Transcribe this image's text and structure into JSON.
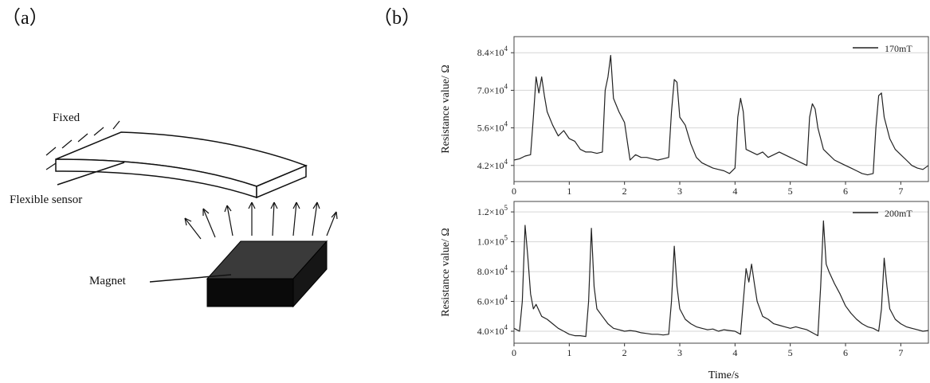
{
  "panel_a": {
    "label": "（a）",
    "fixed_label": "Fixed",
    "sensor_label": "Flexible sensor",
    "magnet_label": "Magnet"
  },
  "panel_b": {
    "label": "（b）",
    "shared_xlabel": "Time/s"
  },
  "chart_data": [
    {
      "type": "line",
      "legend": "170mT",
      "legend_position": "top-right",
      "ylabel": "Resistance value/ Ω",
      "xlim": [
        0,
        7.5
      ],
      "ylim": [
        36000,
        90000
      ],
      "x_ticks": [
        0,
        1,
        2,
        3,
        4,
        5,
        6,
        7
      ],
      "y_ticks": [
        {
          "value": 42000,
          "mantissa": "4.2×10",
          "exp": "4"
        },
        {
          "value": 56000,
          "mantissa": "5.6×10",
          "exp": "4"
        },
        {
          "value": 70000,
          "mantissa": "7.0×10",
          "exp": "4"
        },
        {
          "value": 84000,
          "mantissa": "8.4×10",
          "exp": "4"
        }
      ],
      "grid": true,
      "series": [
        {
          "name": "170mT",
          "x": [
            0,
            0.1,
            0.2,
            0.3,
            0.35,
            0.4,
            0.45,
            0.5,
            0.55,
            0.6,
            0.7,
            0.8,
            0.9,
            1.0,
            1.1,
            1.2,
            1.3,
            1.4,
            1.5,
            1.6,
            1.65,
            1.7,
            1.75,
            1.8,
            1.9,
            2.0,
            2.1,
            2.2,
            2.3,
            2.4,
            2.5,
            2.6,
            2.7,
            2.8,
            2.85,
            2.9,
            2.95,
            3.0,
            3.1,
            3.2,
            3.3,
            3.4,
            3.5,
            3.6,
            3.7,
            3.8,
            3.9,
            4.0,
            4.05,
            4.1,
            4.15,
            4.2,
            4.3,
            4.4,
            4.5,
            4.6,
            4.7,
            4.8,
            4.9,
            5.0,
            5.1,
            5.2,
            5.3,
            5.35,
            5.4,
            5.45,
            5.5,
            5.6,
            5.7,
            5.8,
            5.9,
            6.0,
            6.1,
            6.2,
            6.3,
            6.4,
            6.5,
            6.55,
            6.6,
            6.65,
            6.7,
            6.8,
            6.9,
            7.0,
            7.1,
            7.2,
            7.3,
            7.4,
            7.5
          ],
          "y": [
            44000,
            44500,
            45500,
            46000,
            60000,
            75000,
            69000,
            75000,
            68000,
            62000,
            57000,
            53000,
            55000,
            52000,
            51000,
            48000,
            47000,
            47000,
            46500,
            47000,
            70000,
            75000,
            83000,
            67000,
            62000,
            58000,
            44000,
            46000,
            45000,
            45000,
            44500,
            44000,
            44500,
            45000,
            62000,
            74000,
            73000,
            60000,
            57000,
            50000,
            45000,
            43000,
            42000,
            41000,
            40500,
            40000,
            39000,
            41000,
            60000,
            67000,
            62000,
            48000,
            47000,
            46000,
            47000,
            45000,
            46000,
            47000,
            46000,
            45000,
            44000,
            43000,
            42000,
            60000,
            65000,
            63000,
            56000,
            48000,
            46000,
            44000,
            43000,
            42000,
            41000,
            40000,
            39000,
            38500,
            39000,
            56000,
            68000,
            69000,
            60000,
            52000,
            48000,
            46000,
            44000,
            42000,
            41000,
            40500,
            42000
          ]
        }
      ]
    },
    {
      "type": "line",
      "legend": "200mT",
      "legend_position": "top-right",
      "ylabel": "Resistance value/ Ω",
      "xlabel": "Time/s",
      "xlim": [
        0,
        7.5
      ],
      "ylim": [
        32000,
        127000
      ],
      "x_ticks": [
        0,
        1,
        2,
        3,
        4,
        5,
        6,
        7
      ],
      "y_ticks": [
        {
          "value": 40000,
          "mantissa": "4.0×10",
          "exp": "4"
        },
        {
          "value": 60000,
          "mantissa": "6.0×10",
          "exp": "4"
        },
        {
          "value": 80000,
          "mantissa": "8.0×10",
          "exp": "4"
        },
        {
          "value": 100000,
          "mantissa": "1.0×10",
          "exp": "5"
        },
        {
          "value": 120000,
          "mantissa": "1.2×10",
          "exp": "5"
        }
      ],
      "grid": true,
      "series": [
        {
          "name": "200mT",
          "x": [
            0,
            0.1,
            0.15,
            0.2,
            0.25,
            0.3,
            0.35,
            0.4,
            0.5,
            0.6,
            0.7,
            0.8,
            0.9,
            1.0,
            1.1,
            1.2,
            1.3,
            1.35,
            1.4,
            1.45,
            1.5,
            1.6,
            1.7,
            1.8,
            1.9,
            2.0,
            2.1,
            2.2,
            2.3,
            2.4,
            2.5,
            2.6,
            2.7,
            2.8,
            2.85,
            2.9,
            2.95,
            3.0,
            3.1,
            3.2,
            3.3,
            3.4,
            3.5,
            3.6,
            3.7,
            3.8,
            3.9,
            4.0,
            4.1,
            4.15,
            4.2,
            4.25,
            4.3,
            4.35,
            4.4,
            4.5,
            4.6,
            4.7,
            4.8,
            4.9,
            5.0,
            5.1,
            5.2,
            5.3,
            5.4,
            5.5,
            5.55,
            5.6,
            5.65,
            5.7,
            5.8,
            5.9,
            6.0,
            6.1,
            6.2,
            6.3,
            6.4,
            6.5,
            6.6,
            6.65,
            6.7,
            6.75,
            6.8,
            6.9,
            7.0,
            7.1,
            7.2,
            7.3,
            7.4,
            7.5
          ],
          "y": [
            42000,
            40000,
            60000,
            111000,
            90000,
            65000,
            55000,
            58000,
            50000,
            48000,
            45000,
            42000,
            40000,
            38000,
            37000,
            37000,
            36500,
            60000,
            109000,
            70000,
            55000,
            50000,
            45000,
            42000,
            41000,
            40000,
            40500,
            40000,
            39000,
            38500,
            38000,
            38000,
            37500,
            38000,
            60000,
            97000,
            70000,
            55000,
            48000,
            45000,
            43000,
            42000,
            41000,
            41500,
            40000,
            41000,
            40500,
            40000,
            38000,
            60000,
            82000,
            73000,
            85000,
            72000,
            60000,
            50000,
            48000,
            45000,
            44000,
            43000,
            42000,
            43000,
            42000,
            41000,
            39000,
            37000,
            70000,
            114000,
            85000,
            80000,
            72000,
            65000,
            57000,
            52000,
            48000,
            45000,
            43000,
            42000,
            40000,
            55000,
            89000,
            70000,
            55000,
            48000,
            45000,
            43000,
            42000,
            41000,
            40000,
            40500
          ]
        }
      ]
    }
  ]
}
